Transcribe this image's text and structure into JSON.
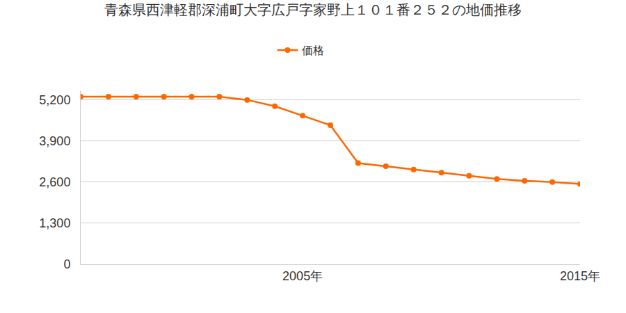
{
  "chart_data": {
    "type": "line",
    "title": "青森県西津軽郡深浦町大字広戸字家野上１０１番２５２の地価推移",
    "x": [
      1997,
      1998,
      1999,
      2000,
      2001,
      2002,
      2003,
      2004,
      2005,
      2006,
      2007,
      2008,
      2009,
      2010,
      2011,
      2012,
      2013,
      2014,
      2015
    ],
    "series": [
      {
        "name": "価格",
        "color": "#ff6600",
        "values": [
          5300,
          5300,
          5300,
          5300,
          5300,
          5300,
          5200,
          5000,
          4700,
          4400,
          3200,
          3100,
          3000,
          2900,
          2800,
          2700,
          2640,
          2600,
          2540
        ]
      }
    ],
    "xlim": [
      1997,
      2015
    ],
    "xticks": [
      {
        "value": 2005,
        "label": "2005年"
      },
      {
        "value": 2015,
        "label": "2015年"
      }
    ],
    "ylim": [
      0,
      5500
    ],
    "yticks": [
      0,
      {
        "value": 1300,
        "label": "1,300"
      },
      {
        "value": 2600,
        "label": "2,600"
      },
      {
        "value": 3900,
        "label": "3,900"
      },
      {
        "value": 5200,
        "label": "5,200"
      }
    ],
    "grid": true,
    "legend": "top",
    "marker": "circle"
  }
}
